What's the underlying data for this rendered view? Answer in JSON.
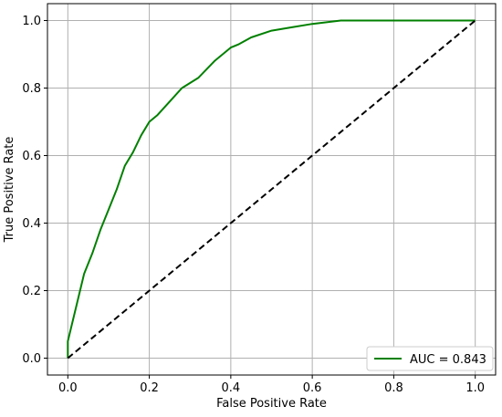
{
  "chart_data": {
    "type": "line",
    "title": "",
    "xlabel": "False Positive Rate",
    "ylabel": "True Positive Rate",
    "xlim": [
      -0.05,
      1.05
    ],
    "ylim": [
      -0.05,
      1.05
    ],
    "xticks": [
      "0.0",
      "0.2",
      "0.4",
      "0.6",
      "0.8",
      "1.0"
    ],
    "yticks": [
      "0.0",
      "0.2",
      "0.4",
      "0.6",
      "0.8",
      "1.0"
    ],
    "grid": true,
    "legend": {
      "placement": "lower-right",
      "entries": [
        "AUC = 0.843"
      ]
    },
    "series": [
      {
        "name": "AUC = 0.843",
        "color": "#008000",
        "style": "solid",
        "points": [
          [
            0.0,
            0.0
          ],
          [
            0.0,
            0.05
          ],
          [
            0.01,
            0.1
          ],
          [
            0.02,
            0.15
          ],
          [
            0.03,
            0.2
          ],
          [
            0.04,
            0.25
          ],
          [
            0.06,
            0.31
          ],
          [
            0.08,
            0.38
          ],
          [
            0.1,
            0.44
          ],
          [
            0.12,
            0.5
          ],
          [
            0.14,
            0.57
          ],
          [
            0.16,
            0.61
          ],
          [
            0.18,
            0.66
          ],
          [
            0.2,
            0.7
          ],
          [
            0.22,
            0.72
          ],
          [
            0.25,
            0.76
          ],
          [
            0.28,
            0.8
          ],
          [
            0.32,
            0.83
          ],
          [
            0.36,
            0.88
          ],
          [
            0.4,
            0.92
          ],
          [
            0.42,
            0.93
          ],
          [
            0.45,
            0.95
          ],
          [
            0.5,
            0.97
          ],
          [
            0.55,
            0.98
          ],
          [
            0.6,
            0.99
          ],
          [
            0.67,
            1.0
          ],
          [
            1.0,
            1.0
          ]
        ]
      },
      {
        "name": "",
        "color": "#000000",
        "style": "dashed",
        "points": [
          [
            0.0,
            0.0
          ],
          [
            1.0,
            1.0
          ]
        ]
      }
    ]
  }
}
